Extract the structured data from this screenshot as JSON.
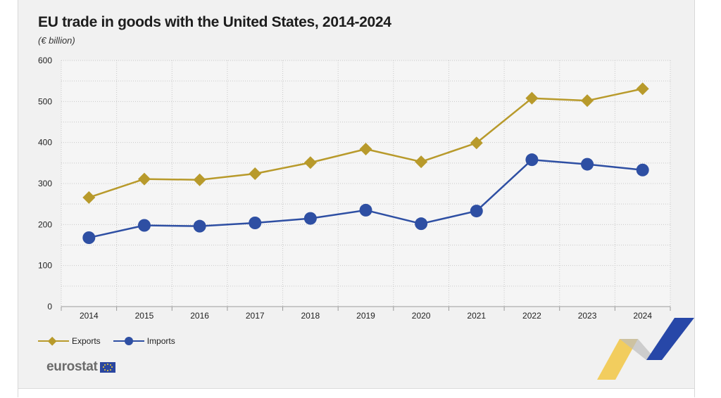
{
  "title": "EU trade in goods with the United States, 2014-2024",
  "subtitle": "(€ billion)",
  "logo_text": "eurostat",
  "chart_data": {
    "type": "line",
    "title": "EU trade in goods with the United States, 2014-2024",
    "subtitle": "(€ billion)",
    "x": [
      "2014",
      "2015",
      "2016",
      "2017",
      "2018",
      "2019",
      "2020",
      "2021",
      "2022",
      "2023",
      "2024"
    ],
    "ylim": [
      0,
      600
    ],
    "yticks": [
      0,
      100,
      200,
      300,
      400,
      500,
      600
    ],
    "grid": true,
    "legend_position": "bottom-left",
    "series": [
      {
        "name": "Exports",
        "color": "#b89a2b",
        "marker": "diamond",
        "values": [
          266,
          311,
          309,
          324,
          351,
          384,
          353,
          399,
          508,
          502,
          531
        ]
      },
      {
        "name": "Imports",
        "color": "#2e4fa3",
        "marker": "circle",
        "values": [
          168,
          198,
          196,
          204,
          215,
          235,
          202,
          233,
          358,
          347,
          333
        ]
      }
    ]
  },
  "colors": {
    "exports": "#b89a2b",
    "imports": "#2e4fa3",
    "background": "#f1f1f1",
    "accent_yellow": "#f2c744",
    "accent_blue": "#2747a8"
  }
}
